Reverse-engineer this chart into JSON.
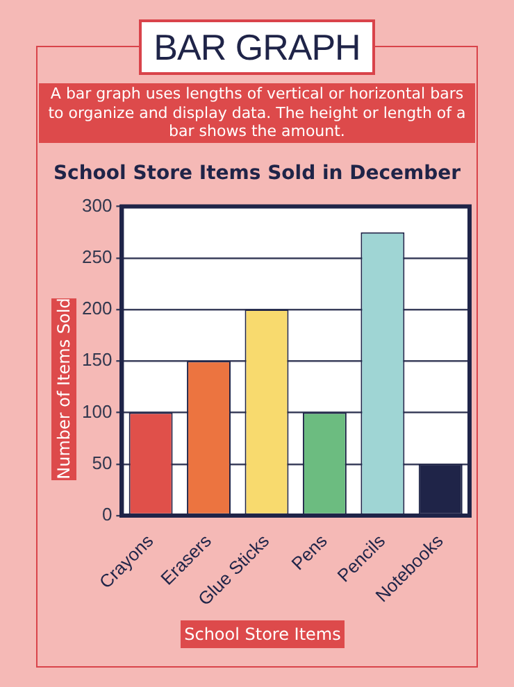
{
  "chart_data": {
    "type": "bar",
    "title": "School Store Items Sold in December",
    "annotations": [
      "BAR GRAPH",
      "A bar graph uses lengths of vertical or horizontal bars to organize and display data. The height or length of a bar shows the amount."
    ],
    "xlabel": "School Store Items",
    "ylabel": "Number of Items Sold",
    "categories": [
      "Crayons",
      "Erasers",
      "Glue Sticks",
      "Pens",
      "Pencils",
      "Notebooks"
    ],
    "values": [
      100,
      150,
      200,
      100,
      275,
      50
    ],
    "colors": [
      "#e0504a",
      "#ec7440",
      "#f8da6e",
      "#6cbc80",
      "#9fd5d4",
      "#1f2448"
    ],
    "ylim": [
      0,
      300
    ],
    "yticks": [
      0,
      50,
      100,
      150,
      200,
      250,
      300
    ],
    "grid": "y",
    "legend": false
  }
}
